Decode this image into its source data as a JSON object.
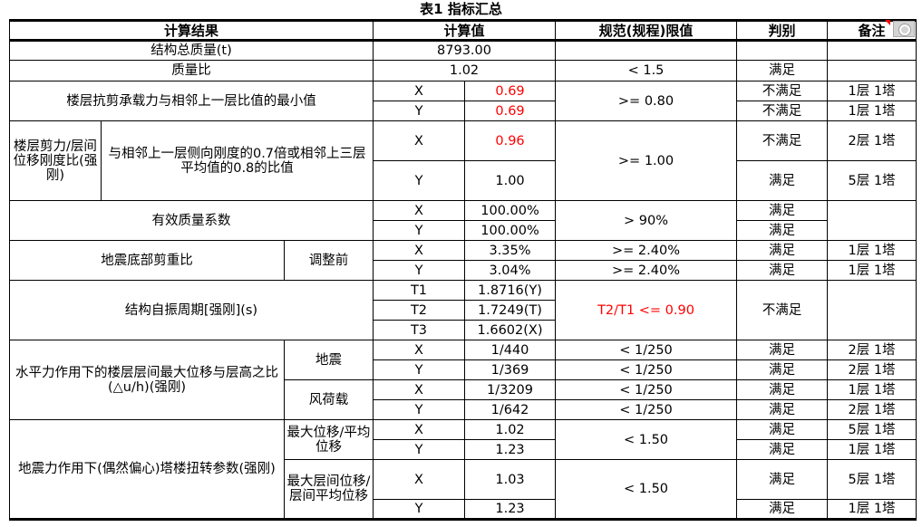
{
  "title": "表1  指标汇总",
  "colors": {
    "warning": "#ff0000"
  },
  "header": [
    "计算结果",
    "计算值",
    "规范(规程)限值",
    "判别",
    "备注"
  ],
  "rows": [
    [
      "结构总质量(t)",
      "8793.00",
      "",
      "",
      ""
    ],
    [
      "质量比",
      "1.02",
      "< 1.5",
      "满足",
      ""
    ],
    [
      "楼层抗剪承载力与相邻上一层比值的最小值",
      "X",
      "0.69",
      ">= 0.80",
      "不满足",
      "1层 1塔"
    ],
    [
      "Y",
      "0.69",
      "不满足",
      "1层 1塔"
    ],
    [
      "楼层剪力/层间位移刚度比(强刚)",
      "与相邻上一层侧向刚度的0.7倍或相邻上三层平均值的0.8的比值",
      "X",
      "0.96",
      ">= 1.00",
      "不满足",
      "2层 1塔"
    ],
    [
      "Y",
      "1.00",
      "满足",
      "5层 1塔"
    ],
    [
      "有效质量系数",
      "X",
      "100.00%",
      "> 90%",
      "满足",
      ""
    ],
    [
      "Y",
      "100.00%",
      "满足"
    ],
    [
      "地震底部剪重比",
      "调整前",
      "X",
      "3.35%",
      ">= 2.40%",
      "满足",
      "1层 1塔"
    ],
    [
      "Y",
      "3.04%",
      ">= 2.40%",
      "满足",
      "1层 1塔"
    ],
    [
      "结构自振周期[强刚](s)",
      "T1",
      "1.8716(Y)",
      "T2/T1 <= 0.90",
      "不满足",
      ""
    ],
    [
      "T2",
      "1.7249(T)"
    ],
    [
      "T3",
      "1.6602(X)"
    ],
    [
      "水平力作用下的楼层层间最大位移与层高之比(△u/h)(强刚)",
      "地震",
      "X",
      "1/440",
      "< 1/250",
      "满足",
      "2层 1塔"
    ],
    [
      "Y",
      "1/369",
      "< 1/250",
      "满足",
      "2层 1塔"
    ],
    [
      "风荷载",
      "X",
      "1/3209",
      "< 1/250",
      "满足",
      "1层 1塔"
    ],
    [
      "Y",
      "1/642",
      "< 1/250",
      "满足",
      "2层 1塔"
    ],
    [
      "地震力作用下(偶然偏心)塔楼扭转参数(强刚)",
      "最大位移/平均位移",
      "X",
      "1.02",
      "< 1.50",
      "满足",
      "5层 1塔"
    ],
    [
      "Y",
      "1.23",
      "满足",
      "1层 1塔"
    ],
    [
      "最大层间位移/层间平均位移",
      "X",
      "1.03",
      "< 1.50",
      "满足",
      "5层 1塔"
    ],
    [
      "Y",
      "1.23",
      "满足",
      "1层 1塔"
    ]
  ]
}
